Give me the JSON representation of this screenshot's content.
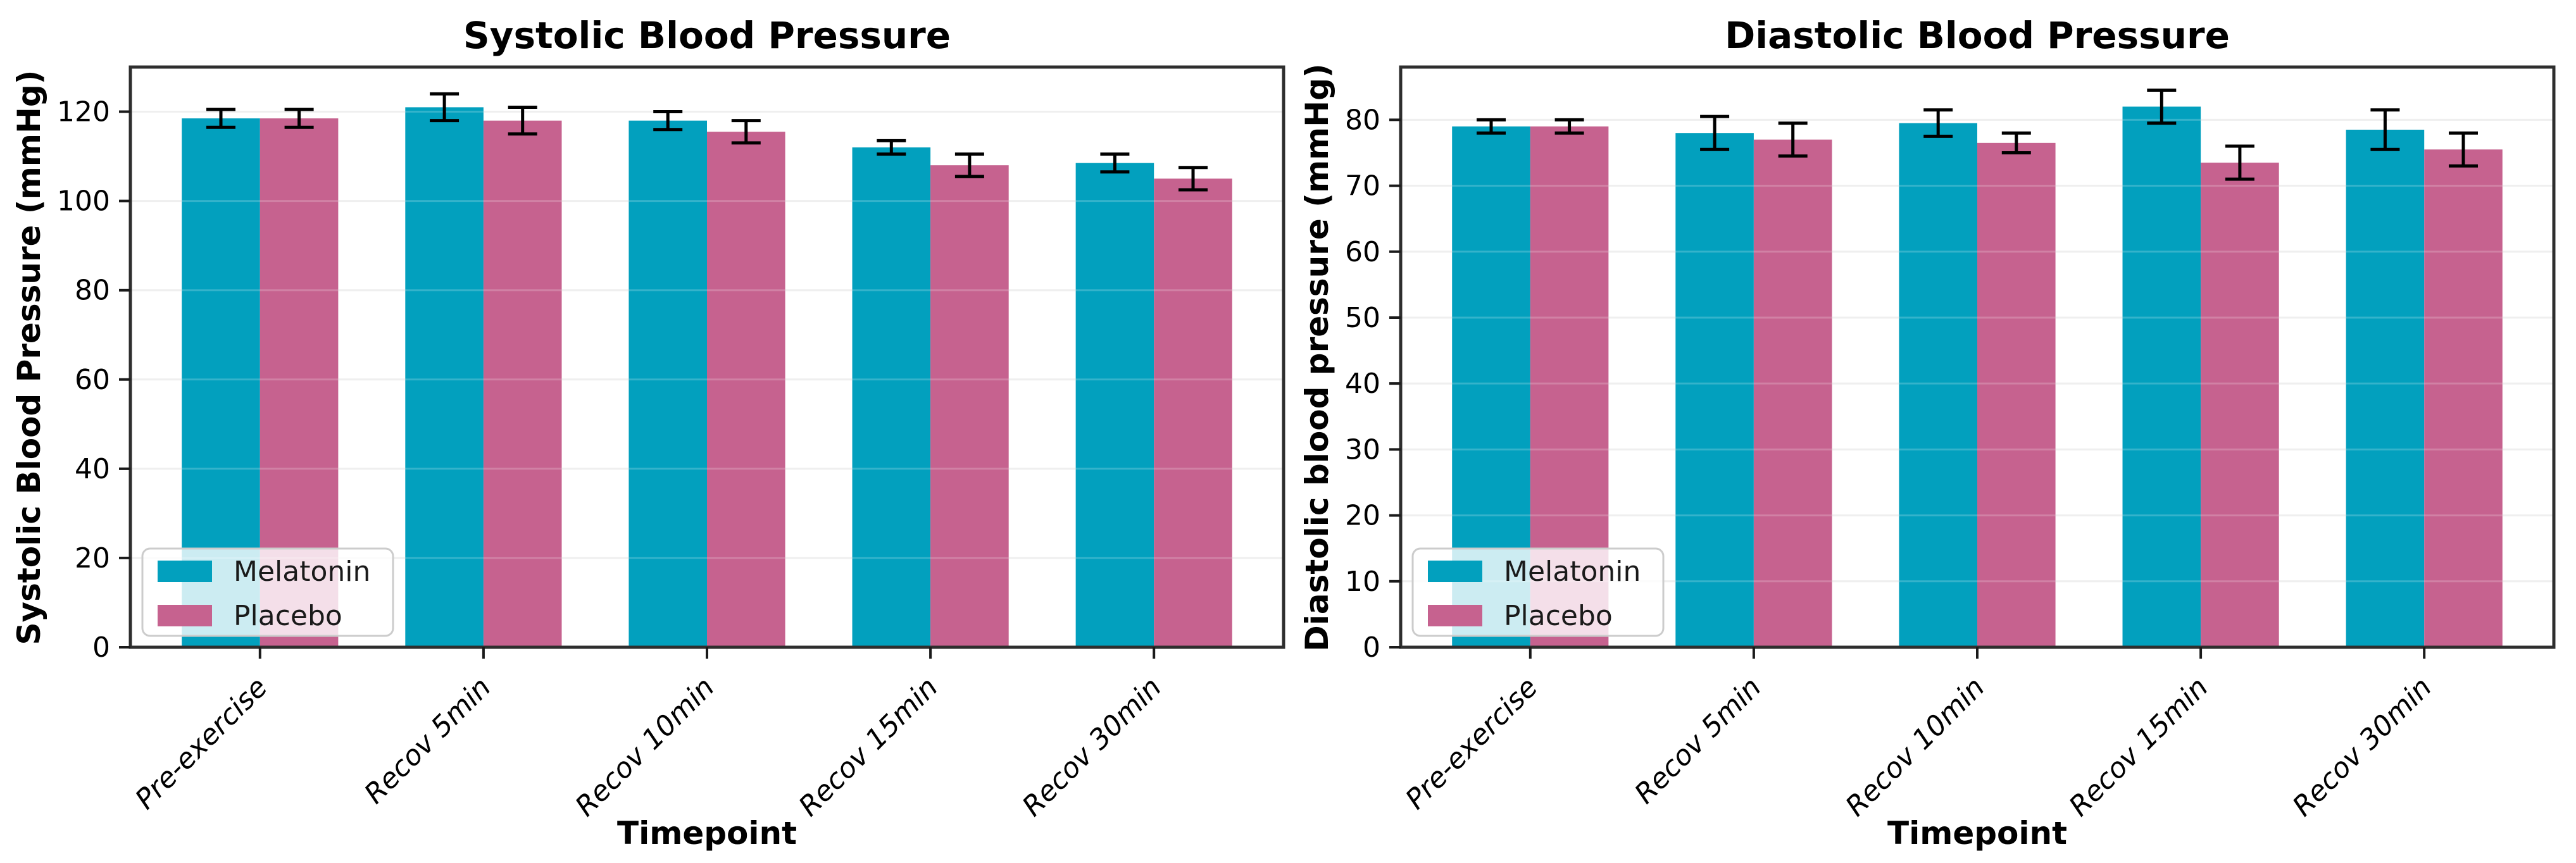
{
  "figure": {
    "background": "#ffffff"
  },
  "style": {
    "grid_color": "#ebebeb",
    "spine_color": "#2e2e2e",
    "tick_color": "#1a1a1a",
    "text_color": "#000000",
    "error_color": "#000000",
    "legend_border": "#cccccc",
    "legend_background": "#ffffff"
  },
  "chart_data": [
    {
      "type": "bar",
      "title": "Systolic Blood Pressure",
      "xlabel": "Timepoint",
      "ylabel": "Systolic Blood Pressure (mmHg)",
      "categories": [
        "Pre-exercise",
        "Recov 5min",
        "Recov 10min",
        "Recov 15min",
        "Recov 30min"
      ],
      "series": [
        {
          "name": "Melatonin",
          "color": "#02a0be",
          "values": [
            118.5,
            121,
            118,
            112,
            108.5
          ],
          "errors": [
            2,
            3,
            2,
            1.5,
            2
          ]
        },
        {
          "name": "Placebo",
          "color": "#c6628f",
          "values": [
            118.5,
            118,
            115.5,
            108,
            105
          ],
          "errors": [
            2,
            3,
            2.5,
            2.5,
            2.5
          ]
        }
      ],
      "ylim": [
        0,
        130
      ],
      "yticks": [
        0,
        20,
        40,
        60,
        80,
        100,
        120
      ],
      "grid": true,
      "legend_position": "lower left",
      "legend_entries": [
        "Melatonin",
        "Placebo"
      ]
    },
    {
      "type": "bar",
      "title": "Diastolic Blood Pressure",
      "xlabel": "Timepoint",
      "ylabel": "Diastolic blood pressure (mmHg)",
      "categories": [
        "Pre-exercise",
        "Recov 5min",
        "Recov 10min",
        "Recov 15min",
        "Recov 30min"
      ],
      "series": [
        {
          "name": "Melatonin",
          "color": "#02a0be",
          "values": [
            79,
            78,
            79.5,
            82,
            78.5
          ],
          "errors": [
            1,
            2.5,
            2,
            2.5,
            3
          ]
        },
        {
          "name": "Placebo",
          "color": "#c6628f",
          "values": [
            79,
            77,
            76.5,
            73.5,
            75.5
          ],
          "errors": [
            1,
            2.5,
            1.5,
            2.5,
            2.5
          ]
        }
      ],
      "ylim": [
        0,
        88
      ],
      "yticks": [
        0,
        10,
        20,
        30,
        40,
        50,
        60,
        70,
        80
      ],
      "grid": true,
      "legend_position": "lower left",
      "legend_entries": [
        "Melatonin",
        "Placebo"
      ]
    }
  ]
}
